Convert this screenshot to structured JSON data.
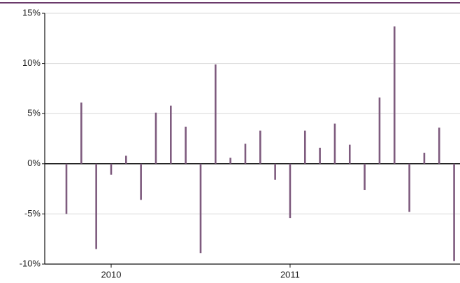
{
  "chart_data": {
    "type": "bar",
    "categories": [
      null,
      null,
      null,
      "2010",
      null,
      null,
      null,
      null,
      null,
      null,
      null,
      null,
      null,
      null,
      null,
      "2011",
      null,
      null,
      null,
      null,
      null,
      null,
      null,
      null,
      null,
      null,
      null
    ],
    "values": [
      -5.0,
      6.1,
      -8.5,
      -1.1,
      0.8,
      -3.6,
      5.1,
      5.8,
      3.7,
      -8.9,
      9.9,
      0.6,
      2.0,
      3.3,
      -1.6,
      -5.4,
      3.3,
      1.6,
      4.0,
      1.9,
      -2.6,
      6.6,
      13.7,
      -4.8,
      1.1,
      3.6,
      -9.7
    ],
    "color": "#7e5b7e",
    "ylim": [
      -10,
      15
    ],
    "yticks": [
      {
        "value": -10,
        "label": "-10%"
      },
      {
        "value": -5,
        "label": "-5%"
      },
      {
        "value": 0,
        "label": "0%"
      },
      {
        "value": 5,
        "label": "5%"
      },
      {
        "value": 10,
        "label": "10%"
      },
      {
        "value": 15,
        "label": "15%"
      }
    ],
    "grid": true
  }
}
